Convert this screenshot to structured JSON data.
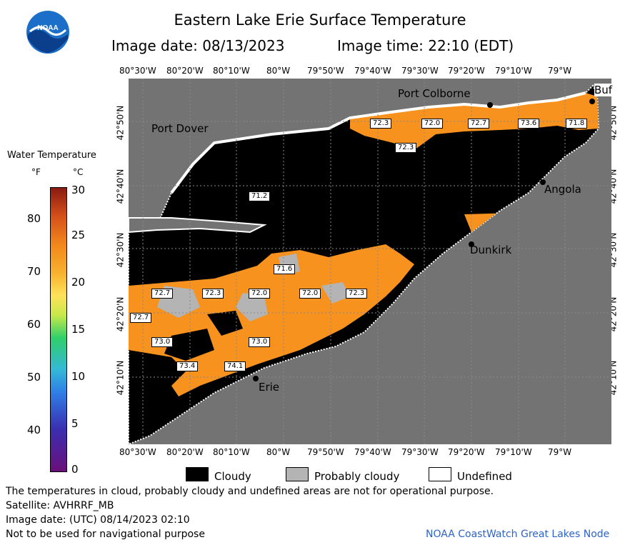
{
  "header": {
    "title": "Eastern Lake Erie Surface Temperature",
    "image_date": "Image date: 08/13/2023",
    "image_time": "Image time: 22:10 (EDT)",
    "logo_text": "NOAA"
  },
  "axes": {
    "longitudes": [
      "80°30'W",
      "80°20'W",
      "80°10'W",
      "80°W",
      "79°50'W",
      "79°40'W",
      "79°30'W",
      "79°20'W",
      "79°10'W",
      "79°W"
    ],
    "latitudes": [
      "42°50'N",
      "42°40'N",
      "42°30'N",
      "42°20'N",
      "42°10'N"
    ]
  },
  "colorbar": {
    "title": "Water Temperature",
    "unit_f": "°F",
    "unit_c": "°C",
    "f_ticks": [
      "80",
      "70",
      "60",
      "50",
      "40"
    ],
    "c_ticks": [
      "30",
      "25",
      "20",
      "15",
      "10",
      "5",
      "0"
    ]
  },
  "places": {
    "port_colborne": "Port Colborne",
    "port_dover": "Port Dover",
    "buffalo": "Buf",
    "angola": "Angola",
    "dunkirk": "Dunkirk",
    "erie": "Erie"
  },
  "temp_labels": [
    "72.3",
    "72.0",
    "72.7",
    "73.6",
    "71.8",
    "72.3",
    "71.2",
    "71.6",
    "72.7",
    "72.3",
    "72.0",
    "72.0",
    "72.3",
    "72.7",
    "73.0",
    "73.0",
    "73.4",
    "74.1"
  ],
  "legend": {
    "cloudy": "Cloudy",
    "probably_cloudy": "Probably cloudy",
    "undefined": "Undefined"
  },
  "colors": {
    "cloud": "#000000",
    "probably_cloudy": "#b4b4b4",
    "land": "#737373",
    "warm_water": "#f7921e",
    "undefined": "#ffffff"
  },
  "footer": {
    "disclaimer": "The temperatures in cloud, probably cloudy and undefined areas are not for operational purpose.",
    "satellite": "Satellite: AVHRRF_MB",
    "utc_date": "Image date: (UTC) 08/14/2023  02:10",
    "nav_note": "Not to be used for navigational purpose",
    "credit": "NOAA CoastWatch Great Lakes Node"
  }
}
